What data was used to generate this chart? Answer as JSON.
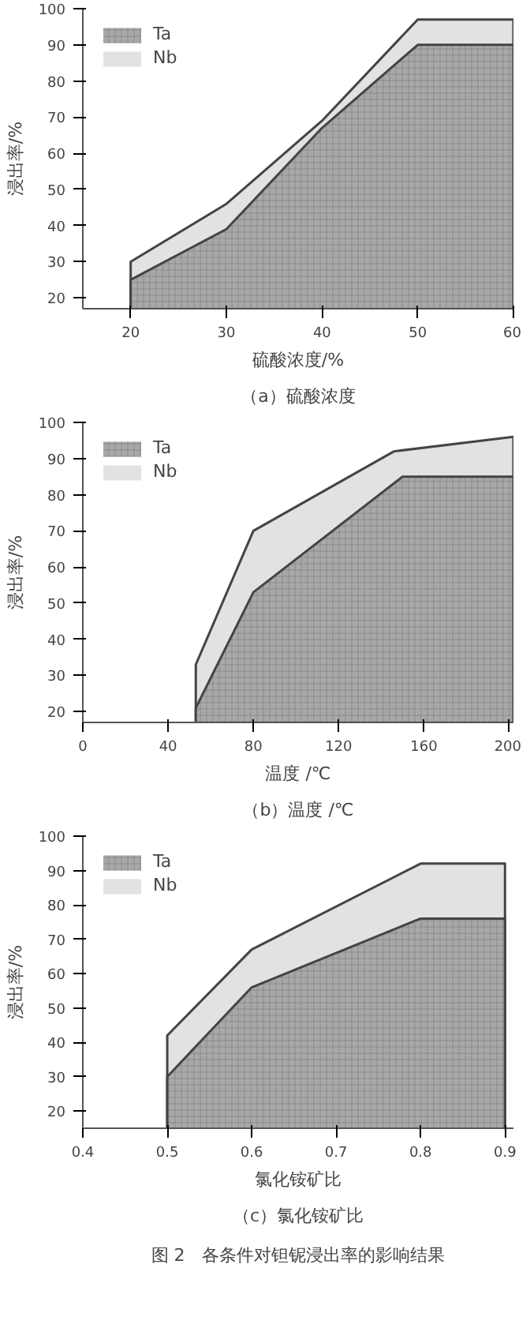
{
  "chart_data": [
    {
      "type": "area",
      "xlabel": "硫酸浓度/%",
      "ylabel": "浸出率/%",
      "xlim": [
        15,
        60
      ],
      "ylim": [
        17,
        100
      ],
      "xticks": [
        20,
        30,
        40,
        50,
        60
      ],
      "yticks": [
        20,
        30,
        40,
        50,
        60,
        70,
        80,
        90,
        100
      ],
      "grid": false,
      "legend": "top left",
      "annotations": [
        "（a）硫酸浓度"
      ],
      "series": [
        {
          "name": "Ta",
          "color": "#a8a8a8",
          "x": [
            20,
            30,
            40,
            50,
            60
          ],
          "values": [
            25,
            39,
            67,
            90,
            90
          ]
        },
        {
          "name": "Nb",
          "color": "#e2e2e2",
          "x": [
            20,
            30,
            40,
            50,
            60
          ],
          "values": [
            30,
            46,
            69,
            97,
            97
          ]
        }
      ]
    },
    {
      "type": "area",
      "xlabel": "温度 /℃",
      "ylabel": "浸出率/%",
      "xlim": [
        0,
        202
      ],
      "ylim": [
        17,
        100
      ],
      "xticks": [
        0,
        40,
        80,
        120,
        160,
        200
      ],
      "yticks": [
        20,
        30,
        40,
        50,
        60,
        70,
        80,
        90,
        100
      ],
      "grid": false,
      "legend": "top left",
      "annotations": [
        "（b）温度 /℃"
      ],
      "series": [
        {
          "name": "Ta",
          "color": "#a8a8a8",
          "x": [
            53,
            80,
            150,
            202
          ],
          "values": [
            21,
            53,
            85,
            85
          ]
        },
        {
          "name": "Nb",
          "color": "#e2e2e2",
          "x": [
            53,
            80,
            146,
            202
          ],
          "values": [
            33,
            70,
            92,
            96
          ]
        }
      ]
    },
    {
      "type": "area",
      "xlabel": "氯化铵矿比",
      "ylabel": "浸出率/%",
      "xlim": [
        0.4,
        0.91
      ],
      "ylim": [
        15,
        100
      ],
      "xticks": [
        0.4,
        0.5,
        0.6,
        0.7,
        0.8,
        0.9
      ],
      "yticks": [
        20,
        30,
        40,
        50,
        60,
        70,
        80,
        90,
        100
      ],
      "grid": false,
      "legend": "top left",
      "annotations": [
        "（c）氯化铵矿比",
        "图 2　各条件对钽铌浸出率的影响结果"
      ],
      "series": [
        {
          "name": "Ta",
          "color": "#a8a8a8",
          "x": [
            0.5,
            0.6,
            0.8,
            0.9
          ],
          "values": [
            30,
            56,
            76,
            76
          ]
        },
        {
          "name": "Nb",
          "color": "#e2e2e2",
          "x": [
            0.5,
            0.6,
            0.8,
            0.9
          ],
          "values": [
            42,
            67,
            92,
            92
          ]
        }
      ]
    }
  ]
}
